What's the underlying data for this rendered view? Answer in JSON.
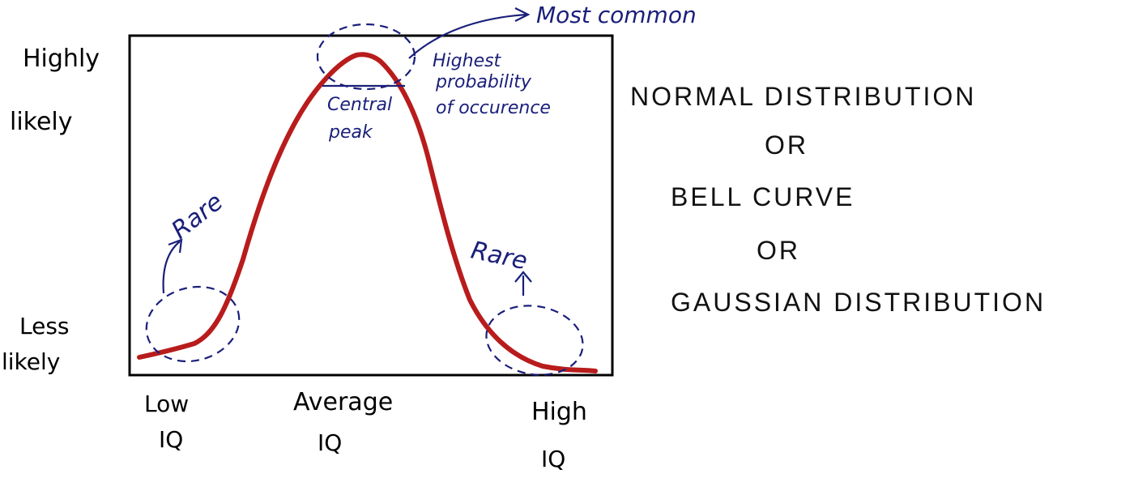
{
  "y_axis": {
    "top_label_line1": "Highly",
    "top_label_line2": "likely",
    "bottom_label_line1": "Less",
    "bottom_label_line2": "likely"
  },
  "x_axis": {
    "low_line1": "Low",
    "low_line2": "IQ",
    "average_line1": "Average",
    "average_line2": "IQ",
    "high_line1": "High",
    "high_line2": "IQ"
  },
  "annotations": {
    "most_common": "Most common",
    "highest_line1": "Highest",
    "highest_line2": "probability",
    "highest_line3": "of occurence",
    "central_line1": "Central",
    "central_line2": "peak",
    "rare_left": "Rare",
    "rare_right": "Rare"
  },
  "titles": {
    "line1": "NORMAL DISTRIBUTION",
    "line2": "OR",
    "line3": "BELL CURVE",
    "line4": "OR",
    "line5": "GAUSSIAN DISTRIBUTION"
  },
  "colors": {
    "curve": "#b81c1c",
    "annotation": "#1a1f7a",
    "frame": "#000000"
  }
}
